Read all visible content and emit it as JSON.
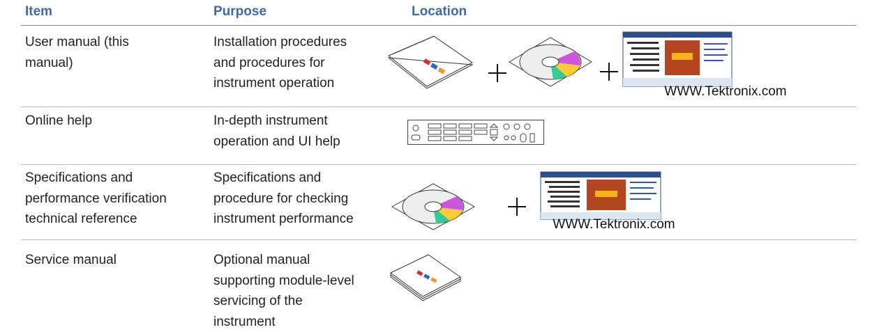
{
  "table": {
    "header": [
      "Item",
      "Purpose",
      "Location"
    ],
    "rows": [
      {
        "item": [
          "User manual (this",
          "manual)"
        ],
        "purpose": [
          "Installation procedures",
          "and procedures for",
          "instrument operation"
        ],
        "location_caption": "WWW.Tektronix.com"
      },
      {
        "item": [
          "Online help"
        ],
        "purpose": [
          "In-depth instrument",
          "operation and UI help"
        ]
      },
      {
        "item": [
          "Specifications and",
          "performance verification",
          "technical reference"
        ],
        "purpose": [
          "Specifications and",
          "procedure for checking",
          "instrument performance"
        ],
        "location_caption": "WWW.Tektronix.com"
      },
      {
        "item": [
          "Service manual"
        ],
        "purpose": [
          "Optional manual",
          "supporting module-level",
          "servicing of the",
          "instrument"
        ]
      }
    ]
  }
}
